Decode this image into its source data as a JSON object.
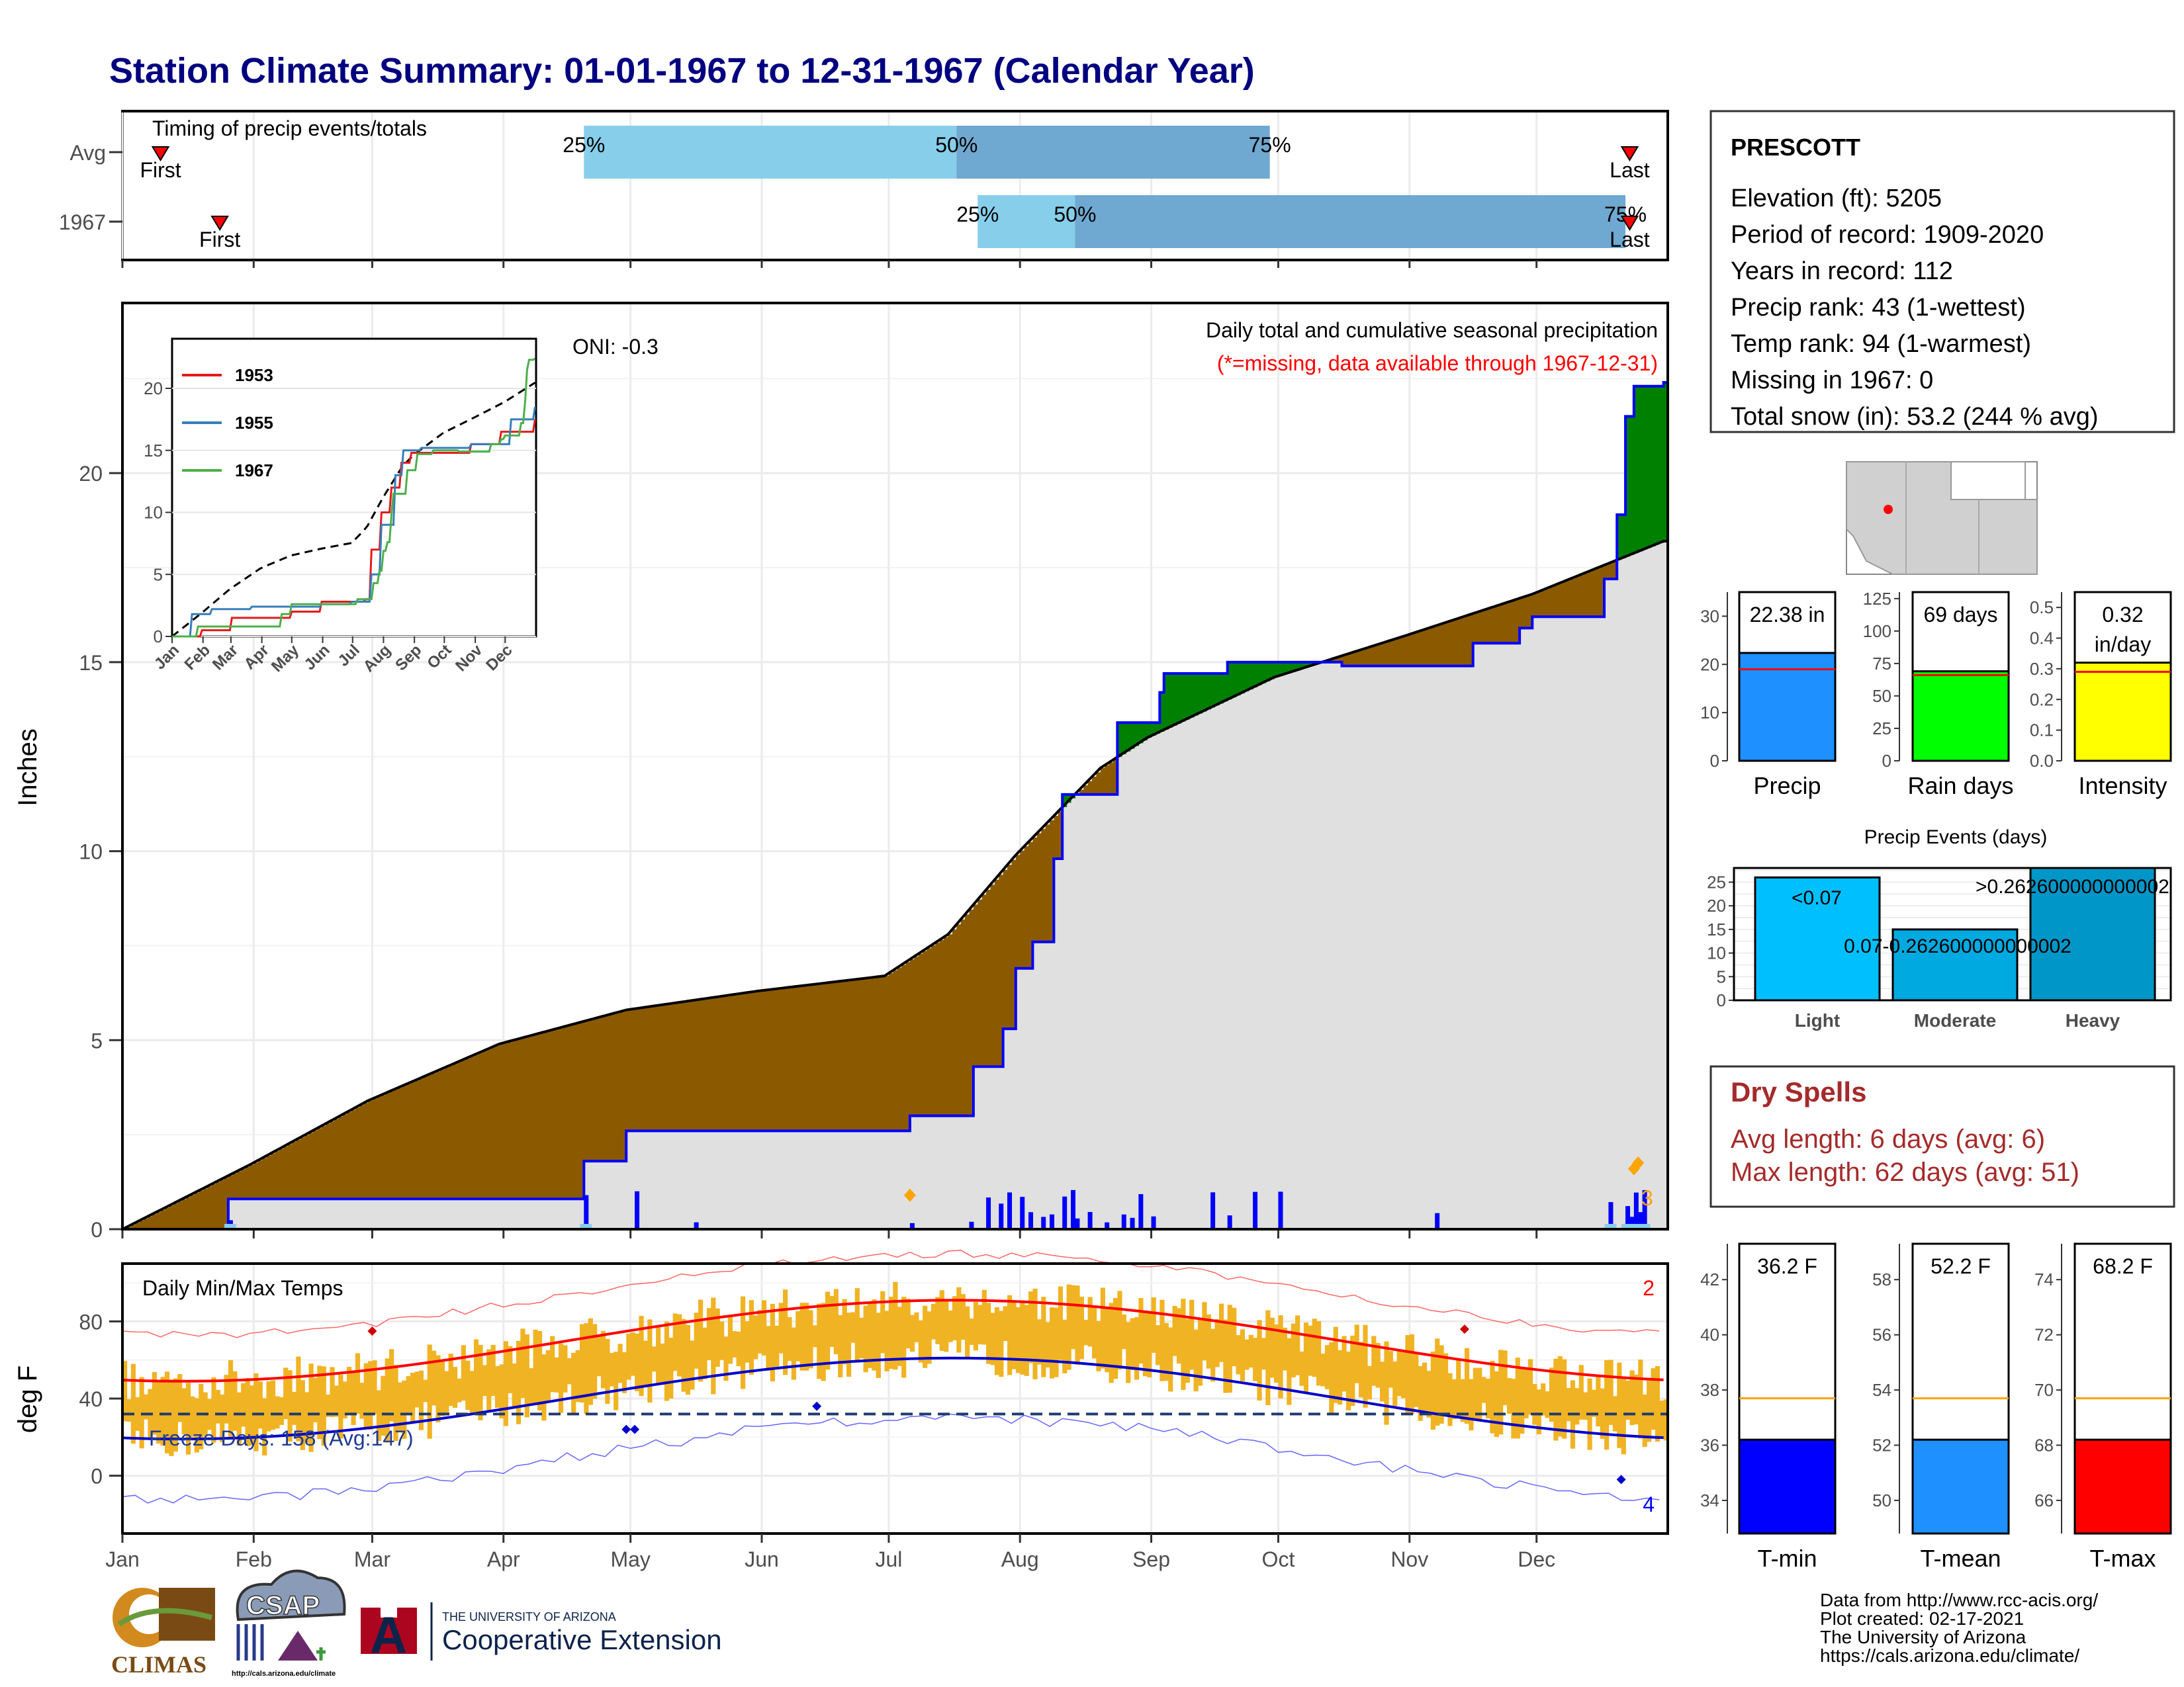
{
  "title": "Station Climate Summary: 01-01-1967 to 12-31-1967 (Calendar Year)",
  "months": [
    "Jan",
    "Feb",
    "Mar",
    "Apr",
    "May",
    "Jun",
    "Jul",
    "Aug",
    "Sep",
    "Oct",
    "Nov",
    "Dec"
  ],
  "timing": {
    "label": "Timing of precip events/totals",
    "rows": [
      {
        "name": "Avg",
        "first_doy": 10,
        "last_doy": 357,
        "p25_doy": 110,
        "p50_doy": 198,
        "p75_doy": 272,
        "p25": "25%",
        "p50": "50%",
        "p75": "75%",
        "first": "First",
        "last": "Last"
      },
      {
        "name": "1967",
        "first_doy": 24,
        "last_doy": 357,
        "p25_doy": 203,
        "p50_doy": 226,
        "p75_doy": 356,
        "p25": "25%",
        "p50": "50%",
        "p75": "75%",
        "first": "First",
        "last": "Last"
      }
    ]
  },
  "station": {
    "name": "PRESCOTT",
    "lines": [
      "Elevation (ft): 5205",
      "Period of record: 1909-2020",
      "Years in record: 112",
      "Precip rank: 43 (1-wettest)",
      "Temp rank: 94 (1-warmest)",
      "Missing in 1967: 0",
      "Total snow (in): 53.2 (244 % avg)"
    ]
  },
  "precip_panel": {
    "ylabel": "Inches",
    "oni": "ONI: -0.3",
    "header": "Daily total and cumulative seasonal precipitation",
    "missing_note": "(*=missing, data available through 1967-12-31)",
    "count_label": "3",
    "ylim": [
      0,
      24.5
    ],
    "yticks": [
      0,
      5,
      10,
      15,
      20
    ],
    "avg_cum_days": [
      1,
      31,
      59,
      90,
      120,
      151,
      181,
      196,
      212,
      232,
      243,
      273,
      304,
      334,
      365
    ],
    "avg_cum_values": [
      0,
      1.7,
      3.4,
      4.9,
      5.8,
      6.3,
      6.7,
      7.8,
      9.9,
      12.2,
      13.0,
      14.6,
      15.7,
      16.8,
      18.2
    ],
    "cum_days": [
      1,
      26,
      110,
      120,
      136,
      187,
      202,
      209,
      212,
      216,
      221,
      223,
      236,
      246,
      247,
      260,
      262,
      289,
      306,
      320,
      331,
      334,
      351,
      354,
      356,
      358,
      365
    ],
    "cum_values": [
      0,
      0.8,
      1.8,
      2.6,
      2.6,
      3.0,
      4.3,
      5.3,
      6.9,
      7.6,
      9.8,
      11.5,
      13.4,
      14.2,
      14.7,
      14.7,
      15.0,
      14.9,
      14.9,
      15.5,
      15.9,
      16.2,
      17.2,
      18.9,
      21.5,
      22.3,
      22.4
    ]
  },
  "inset": {
    "ylim": [
      0,
      24
    ],
    "yticks": [
      0,
      5,
      10,
      15,
      20
    ],
    "series": [
      {
        "name": "1953",
        "color": "#e41a1c"
      },
      {
        "name": "1955",
        "color": "#377eb8"
      },
      {
        "name": "1967",
        "color": "#4daf4a"
      }
    ]
  },
  "temp_panel": {
    "ylabel": "deg F",
    "label": "Daily Min/Max Temps",
    "freeze": "Freeze Days: 158 (Avg:147)",
    "max_records": "2",
    "min_records": "4",
    "ylim": [
      -30,
      110
    ],
    "yticks": [
      0,
      40,
      80
    ],
    "freeze_line": 32
  },
  "bars_precip": [
    {
      "label": "Precip",
      "value": 22.38,
      "avg": 19,
      "text": "22.38 in",
      "color": "#1e90ff",
      "ylim": [
        0,
        35
      ],
      "yticks": [
        0,
        10,
        20,
        30
      ]
    },
    {
      "label": "Rain days",
      "value": 69,
      "avg": 66,
      "text": "69 days",
      "color": "#00ff00",
      "ylim": [
        0,
        130
      ],
      "yticks": [
        0,
        25,
        50,
        75,
        100,
        125
      ]
    },
    {
      "label": "Intensity",
      "value": 0.32,
      "avg": 0.29,
      "text": "0.32",
      "text2": "in/day",
      "color": "#ffff00",
      "ylim": [
        0,
        0.55
      ],
      "yticks": [
        0.0,
        0.1,
        0.2,
        0.3,
        0.4,
        0.5
      ]
    }
  ],
  "events": {
    "title": "Precip Events (days)",
    "ylim": [
      0,
      28
    ],
    "yticks": [
      0,
      5,
      10,
      15,
      20,
      25
    ],
    "bars": [
      {
        "label": "Light",
        "value": 26,
        "text": "<0.07",
        "color": "#00bfff"
      },
      {
        "label": "Moderate",
        "value": 15,
        "text": "0.07-0.262600000000002",
        "color": "#00a9e0"
      },
      {
        "label": "Heavy",
        "value": 28,
        "text": ">0.262600000000002",
        "color": "#0096c7"
      }
    ]
  },
  "dry_spells": {
    "title": "Dry Spells",
    "avg": "Avg length: 6 days (avg: 6)",
    "max": "Max length: 62 days (avg: 51)"
  },
  "bars_temp": [
    {
      "label": "T-min",
      "value": 36.2,
      "avg": 37.7,
      "text": "36.2 F",
      "color": "#0000ff",
      "ylim": [
        32.8,
        43.3
      ],
      "yticks": [
        34,
        36,
        38,
        40,
        42
      ]
    },
    {
      "label": "T-mean",
      "value": 52.2,
      "avg": 53.7,
      "text": "52.2 F",
      "color": "#1e90ff",
      "ylim": [
        48.8,
        59.3
      ],
      "yticks": [
        50,
        52,
        54,
        56,
        58
      ]
    },
    {
      "label": "T-max",
      "value": 68.2,
      "avg": 69.7,
      "text": "68.2 F",
      "color": "#ff0000",
      "ylim": [
        64.8,
        75.3
      ],
      "yticks": [
        66,
        68,
        70,
        72,
        74
      ]
    }
  ],
  "credits": [
    "Data from http://www.rcc-acis.org/",
    "Plot created: 02-17-2021",
    "The University of Arizona",
    "https://cals.arizona.edu/climate/"
  ],
  "logos": {
    "climas": "CLIMAS",
    "csap": "CSAP",
    "csap_url": "http://cals.arizona.edu/climate",
    "ua_small": "THE UNIVERSITY OF ARIZONA",
    "coop": "Cooperative Extension",
    "ua_letter": "A"
  },
  "colors": {
    "title": "#000080",
    "brown": "#8b5a00",
    "green": "#008000",
    "gray_fill": "#e0e0e0",
    "blue": "#0000ff",
    "orange": "#ffa500",
    "temp_bar": "#f0b323",
    "red": "#ff0000",
    "timing_light": "#87ceeb",
    "timing_dark": "#6fa8d0",
    "dry": "#a52a2a"
  }
}
